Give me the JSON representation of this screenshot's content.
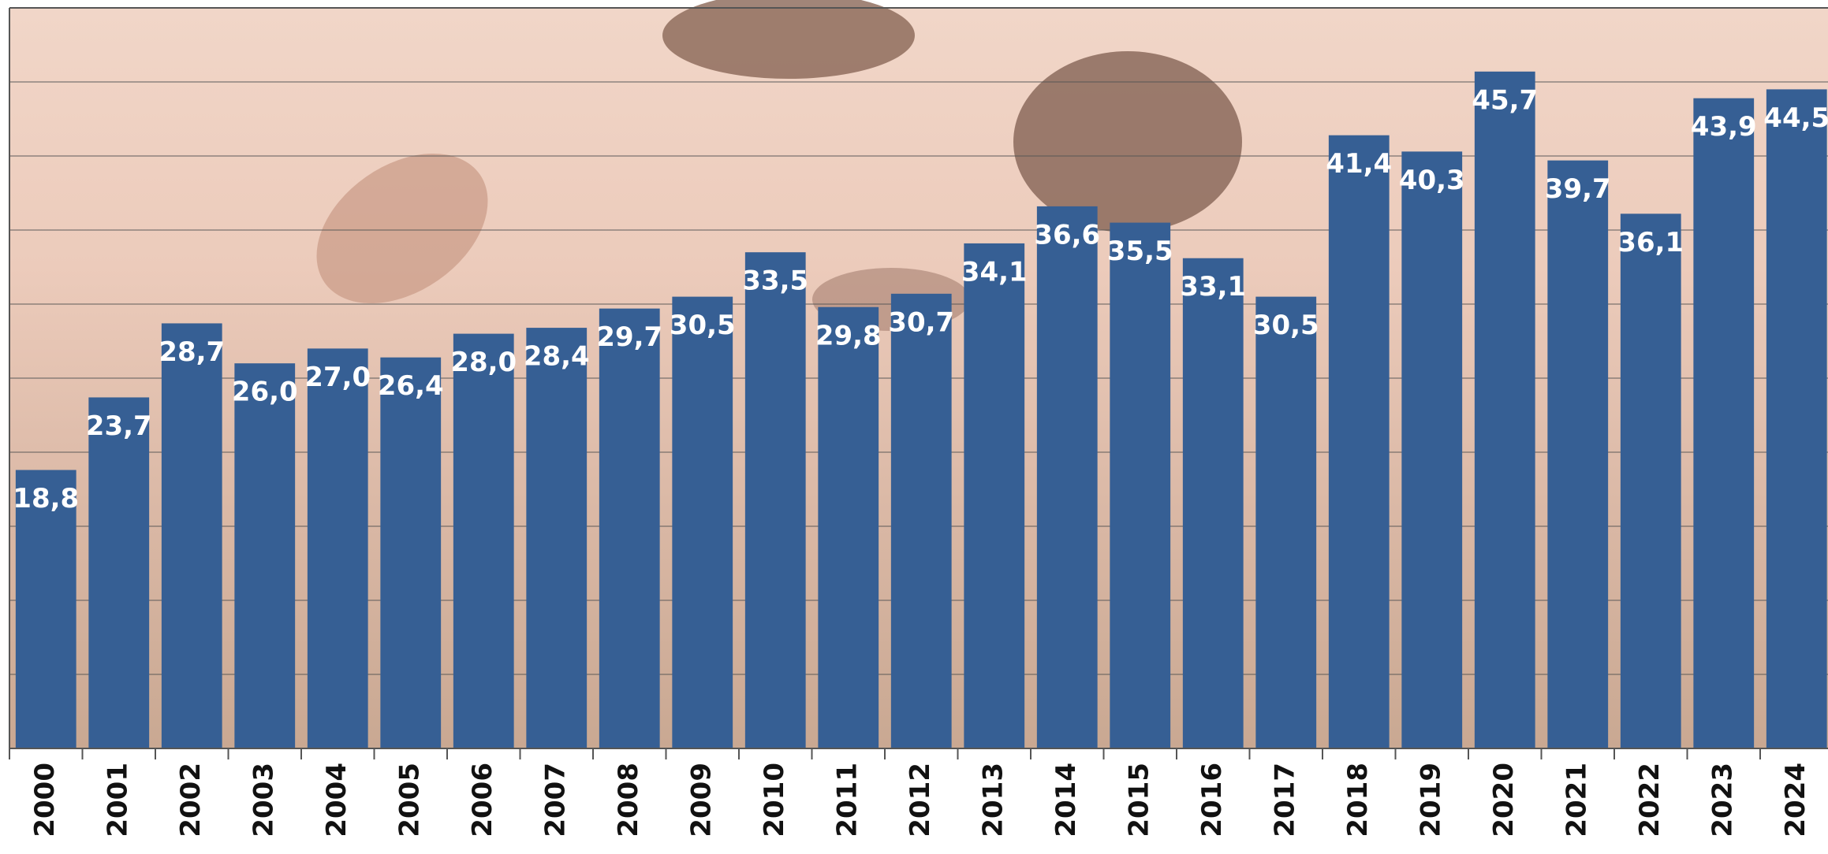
{
  "chart_data": {
    "type": "bar",
    "categories": [
      "2000",
      "2001",
      "2002",
      "2003",
      "2004",
      "2005",
      "2006",
      "2007",
      "2008",
      "2009",
      "2010",
      "2011",
      "2012",
      "2013",
      "2014",
      "2015",
      "2016",
      "2017",
      "2018",
      "2019",
      "2020",
      "2021",
      "2022",
      "2023",
      "2024"
    ],
    "values": [
      18.8,
      23.7,
      28.7,
      26.0,
      27.0,
      26.4,
      28.0,
      28.4,
      29.7,
      30.5,
      33.5,
      29.8,
      30.7,
      34.1,
      36.6,
      35.5,
      33.1,
      30.5,
      41.4,
      40.3,
      45.7,
      39.7,
      36.1,
      43.9,
      44.5
    ],
    "value_labels": [
      "18,8",
      "23,7",
      "28,7",
      "26,0",
      "27,0",
      "26,4",
      "28,0",
      "28,4",
      "29,7",
      "30,5",
      "33,5",
      "29,8",
      "30,7",
      "34,1",
      "36,6",
      "35,5",
      "33,1",
      "30,5",
      "41,4",
      "40,3",
      "45,7",
      "39,7",
      "36,1",
      "43,9",
      "44,5"
    ],
    "color": "#365f94",
    "ylim": [
      0,
      50
    ],
    "yticks": [
      0,
      5,
      10,
      15,
      20,
      25,
      30,
      35,
      40,
      45,
      50
    ],
    "grid": true
  }
}
